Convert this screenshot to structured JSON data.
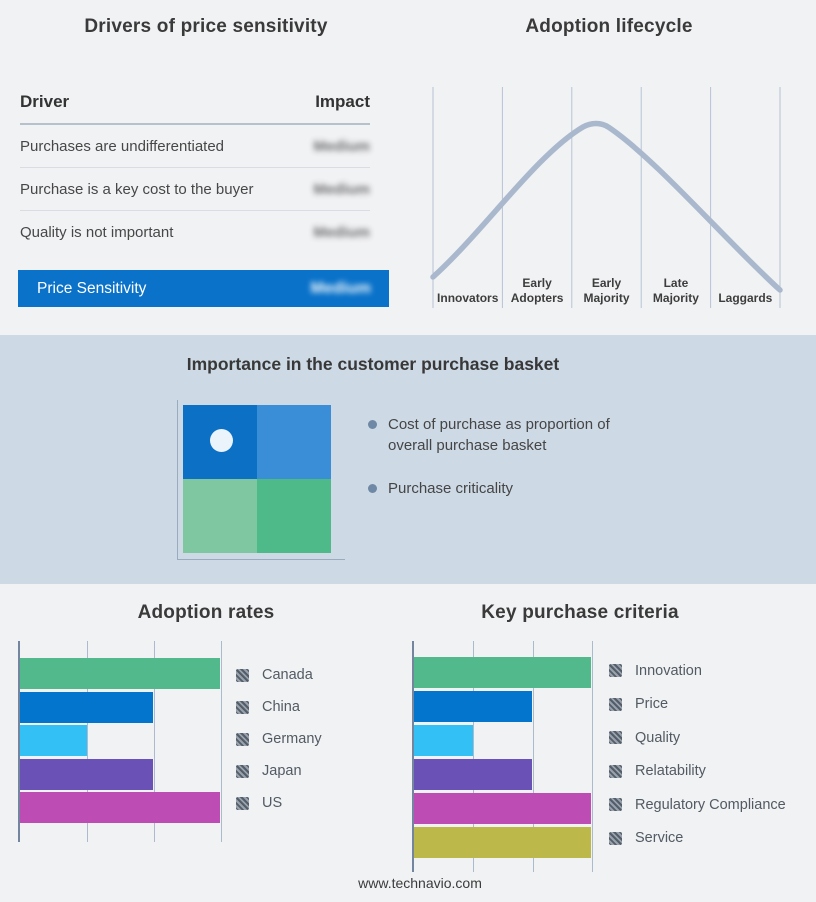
{
  "page": {
    "footer_url": "www.technavio.com",
    "background": "#f1f2f4",
    "band_background": "#cdd9e5"
  },
  "drivers_panel": {
    "title": "Drivers of price sensitivity",
    "header": {
      "driver": "Driver",
      "impact": "Impact"
    },
    "rows": [
      {
        "driver": "Purchases are undifferentiated",
        "impact": "Medium",
        "impact_obscured": true
      },
      {
        "driver": "Purchase is a key cost to the buyer",
        "impact": "Medium",
        "impact_obscured": true
      },
      {
        "driver": "Quality is not important",
        "impact": "Medium",
        "impact_obscured": true
      }
    ],
    "summary_row": {
      "label": "Price Sensitivity",
      "impact": "Medium",
      "impact_obscured": true,
      "background": "#0a72c9"
    }
  },
  "purchase_basket": {
    "title": "Importance in the customer purchase basket",
    "bullets": [
      "Cost of purchase as proportion of overall purchase basket",
      "Purchase criticality"
    ],
    "matrix": {
      "top_left": "#0c70c5",
      "top_right": "#3a8ed8",
      "bottom_left": "#7ec7a0",
      "bottom_right": "#4eba89",
      "marker_quadrant": "top-left",
      "marker_color": "#ecf4fb"
    }
  },
  "chart_data": [
    {
      "type": "line",
      "title": "Adoption lifecycle",
      "categories": [
        "Innovators",
        "Early Adopters",
        "Early Majority",
        "Late Majority",
        "Laggards"
      ],
      "curve_shape": "bell curve peaking between Early Majority and Late Majority boundary",
      "curve_points_norm": [
        [
          0,
          0.07
        ],
        [
          0.1,
          0.24
        ],
        [
          0.2,
          0.44
        ],
        [
          0.3,
          0.66
        ],
        [
          0.4,
          0.88
        ],
        [
          0.475,
          1.0
        ],
        [
          0.55,
          0.9
        ],
        [
          0.65,
          0.71
        ],
        [
          0.75,
          0.5
        ],
        [
          0.85,
          0.3
        ],
        [
          1,
          0.04
        ]
      ],
      "curve_color": "#a9b8cd",
      "grid": "vertical stage-boundary lines",
      "legend": false,
      "axis_labels": false
    },
    {
      "type": "bar",
      "title": "Adoption rates",
      "orientation": "horizontal",
      "categories": [
        "Canada",
        "China",
        "Germany",
        "Japan",
        "US"
      ],
      "values": [
        3,
        2,
        1,
        2,
        3
      ],
      "max": 3,
      "value_scale": "relative thirds of axis (no numeric tick labels shown)",
      "colors": [
        "#52b98c",
        "#0375cd",
        "#33c1f5",
        "#6a51b5",
        "#bd4db4"
      ],
      "grid": "vertical lines at 1/3, 2/3, 3/3",
      "legend_position": "right"
    },
    {
      "type": "bar",
      "title": "Key purchase criteria",
      "orientation": "horizontal",
      "categories": [
        "Innovation",
        "Price",
        "Quality",
        "Relatability",
        "Regulatory Compliance",
        "Service"
      ],
      "values": [
        3,
        2,
        1,
        2,
        3,
        3
      ],
      "max": 3,
      "value_scale": "relative thirds of axis (no numeric tick labels shown)",
      "colors": [
        "#52b98c",
        "#0375cd",
        "#33c1f5",
        "#6a51b5",
        "#bd4db4",
        "#bdb84a"
      ],
      "grid": "vertical lines at 1/3, 2/3, 3/3",
      "legend_position": "right"
    }
  ]
}
